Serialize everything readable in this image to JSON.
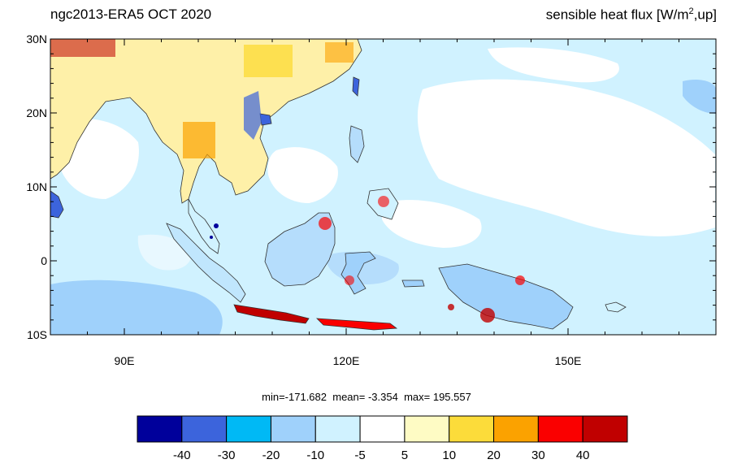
{
  "header": {
    "title": "ngc2013-ERA5  OCT 2020",
    "variable_prefix": "sensible heat flux [W/m",
    "variable_sup": "2",
    "variable_suffix": ",up]"
  },
  "map": {
    "region": "Maritime Continent / Southeast Asia",
    "lon_range": [
      80,
      170
    ],
    "lat_range": [
      -10,
      30
    ],
    "lat_tick_labels": [
      "30N",
      "20N",
      "10N",
      "0",
      "10S"
    ],
    "lon_tick_labels": [
      "90E",
      "120E",
      "150E"
    ],
    "ocean_base_color": "#d0f2ff",
    "land_outline_color": "#333333"
  },
  "stats": {
    "min": "min=-171.682",
    "mean": "mean=  -3.354",
    "max": "max= 195.557"
  },
  "colorbar": {
    "colors": [
      "#00009b",
      "#3c64dc",
      "#00b9f5",
      "#9fd1fb",
      "#d0f2ff",
      "#ffffff",
      "#fefbc4",
      "#fcdc3a",
      "#fba200",
      "#fa0000",
      "#c00000"
    ],
    "labels": [
      "-40",
      "-30",
      "-20",
      "-10",
      "-5",
      "5",
      "10",
      "20",
      "30",
      "40"
    ]
  }
}
